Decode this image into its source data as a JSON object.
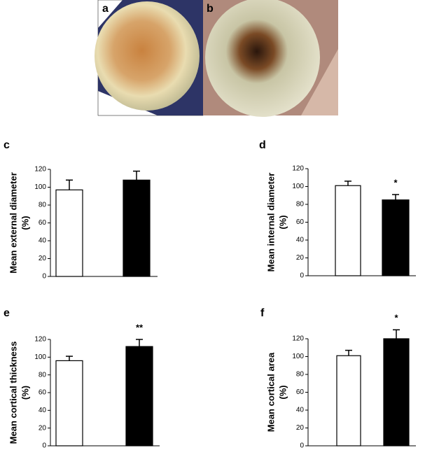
{
  "photo_labels": [
    "a",
    "b"
  ],
  "chart_data": [
    {
      "type": "bar",
      "panel_label": "c",
      "y_label": [
        "Mean external diameter",
        "(%)"
      ],
      "categories": [
        null,
        null
      ],
      "values": [
        97,
        108
      ],
      "errors": [
        11,
        10
      ],
      "colors": [
        "#ffffff",
        "#000000"
      ],
      "ylim": [
        0,
        120
      ],
      "yticks": [
        0,
        20,
        40,
        60,
        80,
        100,
        120
      ],
      "annotation": null
    },
    {
      "type": "bar",
      "panel_label": "d",
      "y_label": [
        "Mean internal diameter",
        "(%)"
      ],
      "categories": [
        null,
        null
      ],
      "values": [
        101,
        85
      ],
      "errors": [
        5,
        6
      ],
      "colors": [
        "#ffffff",
        "#000000"
      ],
      "ylim": [
        0,
        120
      ],
      "yticks": [
        0,
        20,
        40,
        60,
        80,
        100,
        120
      ],
      "annotation": "*"
    },
    {
      "type": "bar",
      "panel_label": "e",
      "y_label": [
        "Mean cortical thickness",
        "(%)"
      ],
      "categories": [
        null,
        null
      ],
      "values": [
        96,
        112
      ],
      "errors": [
        5,
        8
      ],
      "colors": [
        "#ffffff",
        "#000000"
      ],
      "ylim": [
        0,
        120
      ],
      "yticks": [
        0,
        20,
        40,
        60,
        80,
        100,
        120
      ],
      "annotation": "**"
    },
    {
      "type": "bar",
      "panel_label": "f",
      "y_label": [
        "Mean cortical area",
        "(%)"
      ],
      "categories": [
        null,
        null
      ],
      "values": [
        101,
        120
      ],
      "errors": [
        6,
        10
      ],
      "colors": [
        "#ffffff",
        "#000000"
      ],
      "ylim": [
        0,
        120
      ],
      "yticks": [
        0,
        20,
        40,
        60,
        80,
        100,
        120
      ],
      "annotation": "*"
    }
  ]
}
